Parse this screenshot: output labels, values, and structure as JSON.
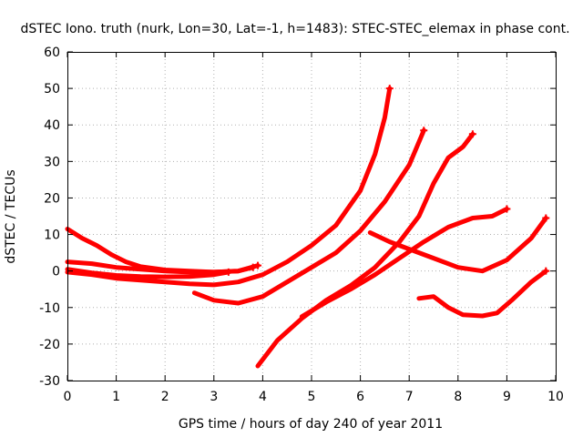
{
  "chart_data": {
    "type": "scatter",
    "title": "dSTEC Iono. truth (nurk, Lon=30, Lat=-1, h=1483): STEC-STEC_elemax in phase cont.",
    "xlabel": "GPS time / hours of day 240 of year 2011",
    "ylabel": "dSTEC  / TECUs",
    "xlim": [
      0,
      10
    ],
    "ylim": [
      -30,
      60
    ],
    "xticks": [
      0,
      1,
      2,
      3,
      4,
      5,
      6,
      7,
      8,
      9,
      10
    ],
    "yticks": [
      -30,
      -20,
      -10,
      0,
      10,
      20,
      30,
      40,
      50,
      60
    ],
    "grid": true,
    "color": "#ff0000",
    "series": [
      {
        "points": [
          [
            0.0,
            11.5
          ],
          [
            0.3,
            9.0
          ],
          [
            0.6,
            7.0
          ],
          [
            0.9,
            4.5
          ],
          [
            1.2,
            2.5
          ],
          [
            1.5,
            1.2
          ],
          [
            2.0,
            0.3
          ],
          [
            2.5,
            0.0
          ],
          [
            3.0,
            -0.3
          ],
          [
            3.5,
            0.0
          ],
          [
            3.9,
            1.5
          ]
        ]
      },
      {
        "points": [
          [
            0.0,
            2.5
          ],
          [
            0.5,
            2.0
          ],
          [
            1.0,
            1.0
          ],
          [
            1.5,
            0.5
          ],
          [
            2.0,
            0.0
          ],
          [
            2.5,
            -0.3
          ],
          [
            3.0,
            -0.3
          ],
          [
            3.5,
            0.0
          ],
          [
            3.8,
            1.0
          ]
        ]
      },
      {
        "points": [
          [
            0.0,
            0.5
          ],
          [
            0.5,
            -0.5
          ],
          [
            1.0,
            -1.2
          ],
          [
            1.5,
            -1.5
          ],
          [
            2.0,
            -1.6
          ],
          [
            2.5,
            -1.5
          ],
          [
            3.0,
            -1.0
          ],
          [
            3.3,
            -0.3
          ]
        ]
      },
      {
        "points": [
          [
            0.0,
            -0.3
          ],
          [
            0.5,
            -1.0
          ],
          [
            1.0,
            -2.0
          ],
          [
            1.5,
            -2.5
          ],
          [
            2.0,
            -3.0
          ],
          [
            2.5,
            -3.5
          ],
          [
            3.0,
            -3.8
          ],
          [
            3.5,
            -3.0
          ],
          [
            4.0,
            -1.0
          ],
          [
            4.5,
            2.5
          ],
          [
            5.0,
            7.0
          ],
          [
            5.5,
            12.5
          ],
          [
            6.0,
            22.0
          ],
          [
            6.3,
            32.0
          ],
          [
            6.5,
            42.0
          ],
          [
            6.6,
            50.0
          ]
        ]
      },
      {
        "points": [
          [
            2.6,
            -6.0
          ],
          [
            3.0,
            -8.0
          ],
          [
            3.5,
            -8.8
          ],
          [
            4.0,
            -7.0
          ],
          [
            4.5,
            -3.0
          ],
          [
            5.0,
            1.0
          ],
          [
            5.5,
            5.0
          ],
          [
            6.0,
            11.0
          ],
          [
            6.5,
            19.0
          ],
          [
            7.0,
            29.0
          ],
          [
            7.3,
            38.5
          ]
        ]
      },
      {
        "points": [
          [
            3.9,
            -26.0
          ],
          [
            4.3,
            -19.0
          ],
          [
            4.8,
            -13.0
          ],
          [
            5.3,
            -8.0
          ],
          [
            5.8,
            -4.0
          ],
          [
            6.3,
            1.0
          ],
          [
            6.8,
            8.0
          ],
          [
            7.2,
            15.0
          ],
          [
            7.5,
            24.0
          ],
          [
            7.8,
            31.0
          ],
          [
            8.1,
            34.0
          ],
          [
            8.3,
            37.5
          ]
        ]
      },
      {
        "points": [
          [
            4.8,
            -12.5
          ],
          [
            5.3,
            -8.5
          ],
          [
            5.8,
            -5.0
          ],
          [
            6.3,
            -1.0
          ],
          [
            6.8,
            3.5
          ],
          [
            7.3,
            8.0
          ],
          [
            7.8,
            12.0
          ],
          [
            8.3,
            14.5
          ],
          [
            8.7,
            15.0
          ],
          [
            9.0,
            17.0
          ]
        ]
      },
      {
        "points": [
          [
            6.2,
            10.5
          ],
          [
            6.6,
            8.0
          ],
          [
            7.0,
            6.0
          ],
          [
            7.5,
            3.5
          ],
          [
            8.0,
            1.0
          ],
          [
            8.5,
            0.0
          ],
          [
            9.0,
            3.0
          ],
          [
            9.5,
            9.0
          ],
          [
            9.8,
            14.5
          ]
        ]
      },
      {
        "points": [
          [
            7.2,
            -7.5
          ],
          [
            7.5,
            -7.0
          ],
          [
            7.8,
            -10.0
          ],
          [
            8.1,
            -12.0
          ],
          [
            8.5,
            -12.3
          ],
          [
            8.8,
            -11.5
          ],
          [
            9.1,
            -8.0
          ],
          [
            9.5,
            -3.0
          ],
          [
            9.8,
            0.0
          ]
        ]
      }
    ]
  }
}
